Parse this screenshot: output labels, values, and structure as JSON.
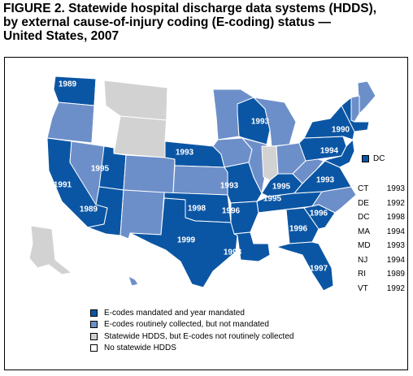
{
  "figure": {
    "title_lines": [
      "FIGURE 2. Statewide hospital discharge data systems (HDDS),",
      "by external cause-of-injury coding (E-coding) status —",
      "United States, 2007"
    ]
  },
  "colors": {
    "mandated": "#0b56a4",
    "routine": "#6d8fc9",
    "not_routine": "#d2d2d2",
    "none": "#ffffff"
  },
  "legend": [
    {
      "key": "mandated",
      "label": "E-codes mandated and year mandated"
    },
    {
      "key": "routine",
      "label": "E-codes routinely collected, but not mandated"
    },
    {
      "key": "not_routine",
      "label": "Statewide HDDS, but E-codes not routinely collected"
    },
    {
      "key": "none",
      "label": "No statewide HDDS"
    }
  ],
  "dc_key": {
    "label": "DC"
  },
  "small_states": [
    {
      "state": "CT",
      "year": "1993"
    },
    {
      "state": "DE",
      "year": "1992"
    },
    {
      "state": "DC",
      "year": "1998"
    },
    {
      "state": "MA",
      "year": "1994"
    },
    {
      "state": "MD",
      "year": "1993"
    },
    {
      "state": "NJ",
      "year": "1994"
    },
    {
      "state": "RI",
      "year": "1989"
    },
    {
      "state": "VT",
      "year": "1992"
    }
  ],
  "states": [
    {
      "id": "WA",
      "status": "mandated",
      "year": "1989"
    },
    {
      "id": "OR",
      "status": "routine",
      "year": ""
    },
    {
      "id": "CA",
      "status": "mandated",
      "year": "1991"
    },
    {
      "id": "NV",
      "status": "routine",
      "year": ""
    },
    {
      "id": "ID",
      "status": "none",
      "year": ""
    },
    {
      "id": "MT",
      "status": "not_routine",
      "year": ""
    },
    {
      "id": "WY",
      "status": "not_routine",
      "year": ""
    },
    {
      "id": "UT",
      "status": "mandated",
      "year": "1995"
    },
    {
      "id": "AZ",
      "status": "mandated",
      "year": "1989"
    },
    {
      "id": "CO",
      "status": "routine",
      "year": ""
    },
    {
      "id": "NM",
      "status": "routine",
      "year": ""
    },
    {
      "id": "ND",
      "status": "none",
      "year": ""
    },
    {
      "id": "SD",
      "status": "none",
      "year": ""
    },
    {
      "id": "NE",
      "status": "mandated",
      "year": "1993"
    },
    {
      "id": "KS",
      "status": "routine",
      "year": ""
    },
    {
      "id": "OK",
      "status": "mandated",
      "year": "1998"
    },
    {
      "id": "TX",
      "status": "mandated",
      "year": "1999"
    },
    {
      "id": "MN",
      "status": "routine",
      "year": ""
    },
    {
      "id": "IA",
      "status": "routine",
      "year": ""
    },
    {
      "id": "MO",
      "status": "mandated",
      "year": "1993"
    },
    {
      "id": "AR",
      "status": "mandated",
      "year": "1996"
    },
    {
      "id": "LA",
      "status": "mandated",
      "year": "1998"
    },
    {
      "id": "WI",
      "status": "mandated",
      "year": "1993"
    },
    {
      "id": "IL",
      "status": "routine",
      "year": ""
    },
    {
      "id": "MI",
      "status": "routine",
      "year": ""
    },
    {
      "id": "IN",
      "status": "not_routine",
      "year": ""
    },
    {
      "id": "OH",
      "status": "routine",
      "year": ""
    },
    {
      "id": "KY",
      "status": "mandated",
      "year": "1995"
    },
    {
      "id": "TN",
      "status": "mandated",
      "year": "1995"
    },
    {
      "id": "MS",
      "status": "none",
      "year": ""
    },
    {
      "id": "AL",
      "status": "none",
      "year": ""
    },
    {
      "id": "GA",
      "status": "mandated",
      "year": "1996"
    },
    {
      "id": "FL",
      "status": "mandated",
      "year": "1997"
    },
    {
      "id": "SC",
      "status": "mandated",
      "year": "1996"
    },
    {
      "id": "NC",
      "status": "routine",
      "year": ""
    },
    {
      "id": "VA",
      "status": "mandated",
      "year": "1993"
    },
    {
      "id": "WV",
      "status": "routine",
      "year": ""
    },
    {
      "id": "PA",
      "status": "mandated",
      "year": "1994"
    },
    {
      "id": "NY",
      "status": "mandated",
      "year": "1990"
    },
    {
      "id": "ME",
      "status": "routine",
      "year": ""
    },
    {
      "id": "NH",
      "status": "routine",
      "year": ""
    },
    {
      "id": "NE_SMALL",
      "status": "mandated",
      "year": ""
    },
    {
      "id": "AK",
      "status": "not_routine",
      "year": ""
    },
    {
      "id": "HI",
      "status": "routine",
      "year": ""
    }
  ]
}
